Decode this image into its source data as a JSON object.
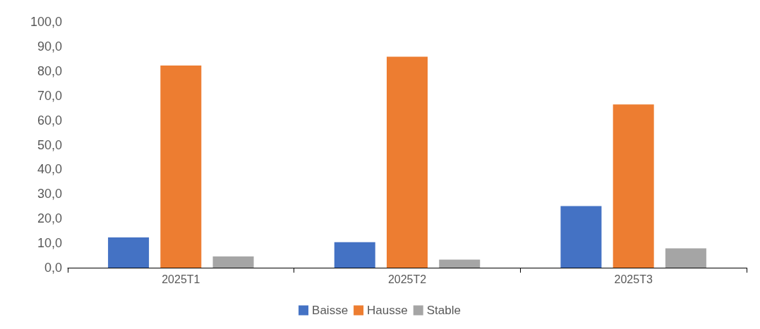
{
  "chart_data": {
    "type": "bar",
    "categories": [
      "2025T1",
      "2025T2",
      "2025T3"
    ],
    "series": [
      {
        "name": "Baisse",
        "color": "#4472c4",
        "values": [
          12.3,
          10.4,
          25.1
        ]
      },
      {
        "name": "Hausse",
        "color": "#ed7d31",
        "values": [
          82.2,
          85.8,
          66.4
        ]
      },
      {
        "name": "Stable",
        "color": "#a5a5a5",
        "values": [
          4.6,
          3.3,
          7.9
        ]
      }
    ],
    "ylim": [
      0,
      100
    ],
    "yticks": [
      {
        "value": 0,
        "label": "0,0"
      },
      {
        "value": 10,
        "label": "10,0"
      },
      {
        "value": 20,
        "label": "20,0"
      },
      {
        "value": 30,
        "label": "30,0"
      },
      {
        "value": 40,
        "label": "40,0"
      },
      {
        "value": 50,
        "label": "50,0"
      },
      {
        "value": 60,
        "label": "60,0"
      },
      {
        "value": 70,
        "label": "70,0"
      },
      {
        "value": 80,
        "label": "80,0"
      },
      {
        "value": 90,
        "label": "90,0"
      },
      {
        "value": 100,
        "label": "100,0"
      }
    ],
    "grid": false,
    "legend": "bottom"
  }
}
